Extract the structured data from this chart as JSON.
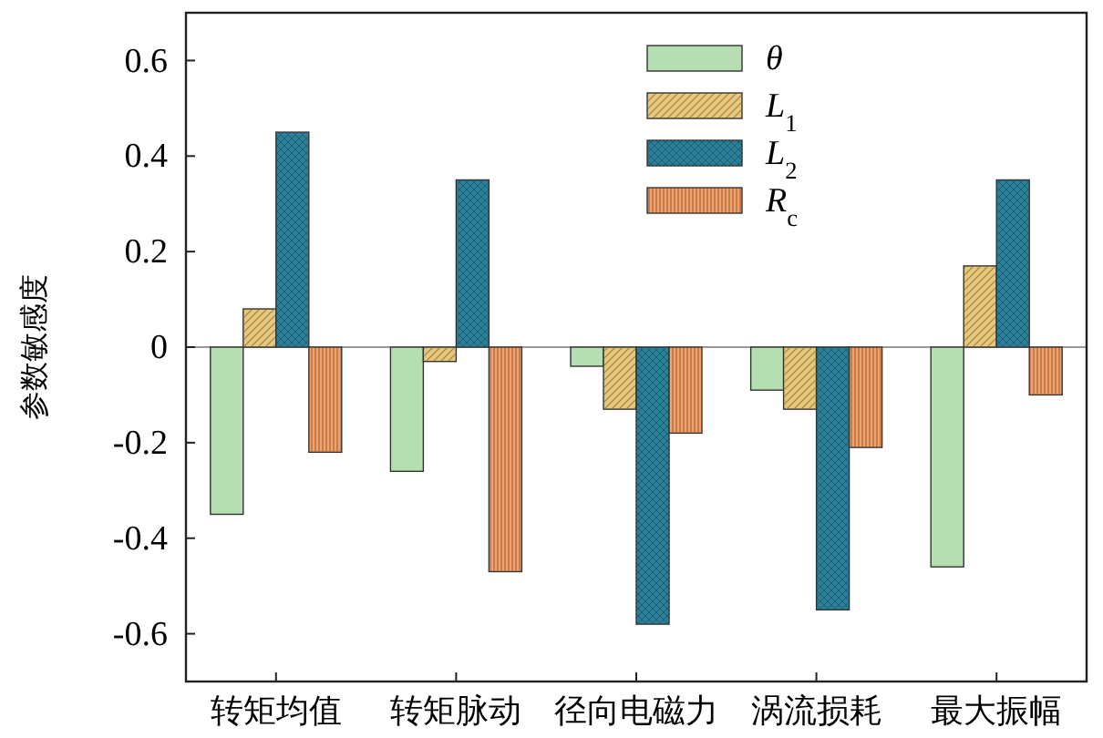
{
  "chart_data": {
    "type": "bar",
    "ylabel": "参数敏感度",
    "categories": [
      "转矩均值",
      "转矩脉动",
      "径向电磁力",
      "涡流损耗",
      "最大振幅"
    ],
    "series": [
      {
        "name": "θ",
        "color": "#b5dfb0",
        "values": [
          -0.35,
          -0.26,
          -0.04,
          -0.09,
          -0.46
        ]
      },
      {
        "name": "L$_{1}$",
        "color": "#e8c878",
        "values": [
          0.08,
          -0.03,
          -0.13,
          -0.13,
          0.17
        ]
      },
      {
        "name": "L$_{2}$",
        "color": "#2a7f99",
        "values": [
          0.45,
          0.35,
          -0.58,
          -0.55,
          0.35
        ]
      },
      {
        "name": "R$_{c}$",
        "color": "#f4a066",
        "values": [
          -0.22,
          -0.47,
          -0.18,
          -0.21,
          -0.1
        ]
      }
    ],
    "ylim": [
      -0.7,
      0.7
    ],
    "yticks": [
      -0.6,
      -0.4,
      -0.2,
      0,
      0.2,
      0.4,
      0.6
    ],
    "ref_lines": [
      {
        "axis": "y",
        "value": 0,
        "color": "#777777"
      }
    ],
    "legend": "top right"
  }
}
